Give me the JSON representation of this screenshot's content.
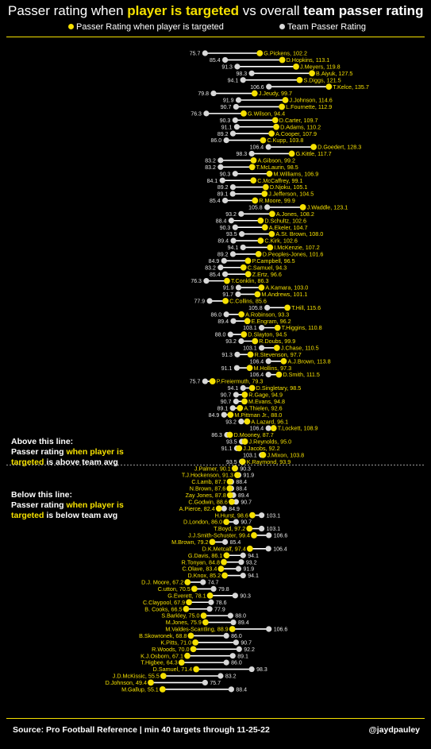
{
  "title": {
    "part1": "Passer rating when ",
    "part2": "player is targeted",
    "part3": " vs overall ",
    "part4": "team passer rating"
  },
  "legend": {
    "player": "Passer Rating when player is targeted",
    "team": "Team Passer Rating"
  },
  "colors": {
    "player": "#f5e000",
    "team": "#d8d8d8",
    "line": "#ffffff",
    "accent": "#f5e000"
  },
  "notes": {
    "above": {
      "l1": "Above this line:",
      "l2a": "Passer rating ",
      "l2b": "when player is",
      "l3a": "targeted",
      "l3b": " is above team avg"
    },
    "below": {
      "l1": "Below this line:",
      "l2a": "Passer rating ",
      "l2b": "when player is",
      "l3a": "targeted",
      "l3b": " is below team avg"
    }
  },
  "footer": {
    "source": "Source: Pro Football Reference | min 40 targets through 11-25-22",
    "handle": "@jaydpauley"
  },
  "chart_data": {
    "type": "dumbbell",
    "series": [
      {
        "name": "Passer Rating when player is targeted"
      },
      {
        "name": "Team Passer Rating"
      }
    ],
    "rows": [
      {
        "name": "G.Pickens",
        "player": 102.2,
        "team": 75.7,
        "team_label": "75.7",
        "label": "G.Pickens, 102.2"
      },
      {
        "name": "D.Hopkins",
        "player": 113.1,
        "team": 85.4,
        "team_label": "85.4",
        "label": "D.Hopkins, 113.1"
      },
      {
        "name": "J.Meyers",
        "player": 119.8,
        "team": 91.3,
        "team_label": "91.3",
        "label": "J.Meyers, 119.8"
      },
      {
        "name": "B.Aiyuk",
        "player": 127.5,
        "team": 98.3,
        "team_label": "98.3",
        "label": "B.Aiyuk, 127.5"
      },
      {
        "name": "S.Diggs",
        "player": 121.5,
        "team": 94.1,
        "team_label": "94.1",
        "label": "S.Diggs, 121.5"
      },
      {
        "name": "T.Kelce",
        "player": 135.7,
        "team": 106.6,
        "team_label": "106.6",
        "label": "T.Kelce, 135.7"
      },
      {
        "name": "J.Jeudy",
        "player": 99.7,
        "team": 79.8,
        "team_label": "79.8",
        "label": "J.Jeudy, 99.7"
      },
      {
        "name": "J.Johnson",
        "player": 114.6,
        "team": 91.9,
        "team_label": "91.9",
        "label": "J.Johnson, 114.6"
      },
      {
        "name": "L.Fournette",
        "player": 112.9,
        "team": 90.7,
        "team_label": "90.7",
        "label": "L.Fournette, 112.9"
      },
      {
        "name": "G.Wilson",
        "player": 94.4,
        "team": 76.3,
        "team_label": "76.3",
        "label": "G.Wilson, 94.4"
      },
      {
        "name": "D.Carter",
        "player": 109.7,
        "team": 90.3,
        "team_label": "90.3",
        "label": "D.Carter, 109.7"
      },
      {
        "name": "D.Adams",
        "player": 110.2,
        "team": 91.1,
        "team_label": "91.1",
        "label": "D.Adams, 110.2"
      },
      {
        "name": "A.Cooper",
        "player": 107.9,
        "team": 89.2,
        "team_label": "89.2",
        "label": "A.Cooper, 107.9"
      },
      {
        "name": "C.Kupp",
        "player": 103.8,
        "team": 86.0,
        "team_label": "86.0",
        "label": "C.Kupp, 103.8"
      },
      {
        "name": "D.Goedert",
        "player": 128.3,
        "team": 106.4,
        "team_label": "106.4",
        "label": "D.Goedert, 128.3"
      },
      {
        "name": "G.Kittle",
        "player": 117.7,
        "team": 98.3,
        "team_label": "98.3",
        "label": "G.Kittle, 117.7"
      },
      {
        "name": "A.Gibson",
        "player": 99.2,
        "team": 83.2,
        "team_label": "83.2",
        "label": "A.Gibson, 99.2"
      },
      {
        "name": "T.McLaurin",
        "player": 98.5,
        "team": 83.2,
        "team_label": "83.2",
        "label": "T.McLaurin, 98.5"
      },
      {
        "name": "M.Williams",
        "player": 106.9,
        "team": 90.3,
        "team_label": "90.3",
        "label": "M.Williams, 106.9"
      },
      {
        "name": "C.McCaffrey",
        "player": 99.1,
        "team": 84.1,
        "team_label": "84.1",
        "label": "C.McCaffrey, 99.1"
      },
      {
        "name": "D.Njoku",
        "player": 105.1,
        "team": 89.2,
        "team_label": "89.2",
        "label": "D.Njoku, 105.1"
      },
      {
        "name": "J.Jefferson",
        "player": 104.5,
        "team": 89.1,
        "team_label": "89.1",
        "label": "J.Jefferson, 104.5"
      },
      {
        "name": "R.Moore",
        "player": 99.9,
        "team": 85.4,
        "team_label": "85.4",
        "label": "R.Moore, 99.9"
      },
      {
        "name": "J.Waddle",
        "player": 123.1,
        "team": 105.8,
        "team_label": "105.8",
        "label": "J.Waddle, 123.1"
      },
      {
        "name": "A.Jones",
        "player": 108.2,
        "team": 93.2,
        "team_label": "93.2",
        "label": "A.Jones, 108.2"
      },
      {
        "name": "D.Schultz",
        "player": 102.6,
        "team": 88.4,
        "team_label": "88.4",
        "label": "D.Schultz, 102.6"
      },
      {
        "name": "A.Ekeler",
        "player": 104.7,
        "team": 90.3,
        "team_label": "90.3",
        "label": "A.Ekeler, 104.7"
      },
      {
        "name": "A.St. Brown",
        "player": 108.0,
        "team": 93.5,
        "team_label": "93.5",
        "label": "A.St. Brown, 108.0"
      },
      {
        "name": "C.Kirk",
        "player": 102.6,
        "team": 89.4,
        "team_label": "89.4",
        "label": "C.Kirk, 102.6"
      },
      {
        "name": "I.McKenzie",
        "player": 107.2,
        "team": 94.1,
        "team_label": "94.1",
        "label": "I.McKenzie, 107.2"
      },
      {
        "name": "D.Peoples-Jones",
        "player": 101.6,
        "team": 89.2,
        "team_label": "89.2",
        "label": "D.Peoples-Jones, 101.6"
      },
      {
        "name": "P.Campbell",
        "player": 96.5,
        "team": 84.9,
        "team_label": "84.9",
        "label": "P.Campbell, 96.5"
      },
      {
        "name": "C.Samuel",
        "player": 94.3,
        "team": 83.2,
        "team_label": "83.2",
        "label": "C.Samuel, 94.3"
      },
      {
        "name": "Z.Ertz",
        "player": 96.6,
        "team": 85.4,
        "team_label": "85.4",
        "label": "Z.Ertz, 96.6"
      },
      {
        "name": "T.Conklin",
        "player": 86.3,
        "team": 76.3,
        "team_label": "76.3",
        "label": "T.Conklin, 86.3"
      },
      {
        "name": "A.Kamara",
        "player": 103.0,
        "team": 91.9,
        "team_label": "91.9",
        "label": "A.Kamara, 103.0"
      },
      {
        "name": "M.Andrews",
        "player": 101.1,
        "team": 91.7,
        "team_label": "91.7",
        "label": "M.Andrews, 101.1"
      },
      {
        "name": "C.Collins",
        "player": 85.6,
        "team": 77.9,
        "team_label": "77.9",
        "label": "C.Collins, 85.6"
      },
      {
        "name": "T.Hill",
        "player": 115.6,
        "team": 105.8,
        "team_label": "105.8",
        "label": "T.Hill, 115.6"
      },
      {
        "name": "A.Robinson",
        "player": 93.3,
        "team": 86.0,
        "team_label": "86.0",
        "label": "A.Robinson, 93.3"
      },
      {
        "name": "E.Engram",
        "player": 96.2,
        "team": 89.4,
        "team_label": "89.4",
        "label": "E.Engram, 96.2"
      },
      {
        "name": "T.Higgins",
        "player": 110.8,
        "team": 103.1,
        "team_label": "103.1",
        "label": "T.Higgins, 110.8"
      },
      {
        "name": "D.Slayton",
        "player": 94.5,
        "team": 88.0,
        "team_label": "88.0",
        "label": "D.Slayton, 94.5"
      },
      {
        "name": "R.Doubs",
        "player": 99.9,
        "team": 93.2,
        "team_label": "93.2",
        "label": "R.Doubs, 99.9"
      },
      {
        "name": "J.Chase",
        "player": 110.5,
        "team": 103.1,
        "team_label": "103.1",
        "label": "J.Chase, 110.5"
      },
      {
        "name": "R.Stevenson",
        "player": 97.7,
        "team": 91.3,
        "team_label": "91.3",
        "label": "R.Stevenson, 97.7"
      },
      {
        "name": "A.J.Brown",
        "player": 113.8,
        "team": 106.4,
        "team_label": "106.4",
        "label": "A.J.Brown, 113.8"
      },
      {
        "name": "M.Hollins",
        "player": 97.3,
        "team": 91.1,
        "team_label": "91.1",
        "label": "M.Hollins, 97.3"
      },
      {
        "name": "D.Smith",
        "player": 111.5,
        "team": 106.4,
        "team_label": "106.4",
        "label": "D.Smith, 111.5"
      },
      {
        "name": "P.Freiermuth",
        "player": 79.3,
        "team": 75.7,
        "team_label": "75.7",
        "label": "P.Freiermuth, 79.3"
      },
      {
        "name": "D.Singletary",
        "player": 98.5,
        "team": 94.1,
        "team_label": "94.1",
        "label": "D.Singletary, 98.5"
      },
      {
        "name": "R.Gage",
        "player": 94.9,
        "team": 90.7,
        "team_label": "90.7",
        "label": "R.Gage, 94.9"
      },
      {
        "name": "M.Evans",
        "player": 94.8,
        "team": 90.7,
        "team_label": "90.7",
        "label": "M.Evans, 94.8"
      },
      {
        "name": "A.Thielen",
        "player": 92.6,
        "team": 89.1,
        "team_label": "89.1",
        "label": "A.Thielen, 92.6"
      },
      {
        "name": "M.Pittman Jr.",
        "player": 88.0,
        "team": 84.9,
        "team_label": "84.9",
        "label": "M.Pittman Jr., 88.0"
      },
      {
        "name": "A.Lazard",
        "player": 96.1,
        "team": 93.2,
        "team_label": "93.2",
        "label": "A.Lazard, 96.1"
      },
      {
        "name": "T.Lockett",
        "player": 108.9,
        "team": 106.4,
        "team_label": "106.4",
        "label": "T.Lockett, 108.9"
      },
      {
        "name": "D.Mooney",
        "player": 87.7,
        "team": 86.3,
        "team_label": "86.3",
        "label": "D.Mooney, 87.7"
      },
      {
        "name": "J.Reynolds",
        "player": 95.0,
        "team": 93.5,
        "team_label": "93.5",
        "label": "J.Reynolds, 95.0"
      },
      {
        "name": "J.Jacobs",
        "player": 92.2,
        "team": 91.1,
        "team_label": "91.1",
        "label": "J.Jacobs, 92.2"
      },
      {
        "name": "J.Mixon",
        "player": 103.8,
        "team": 103.1,
        "team_label": "103.1",
        "label": "J.Mixon, 103.8"
      },
      {
        "name": "K.Raymond",
        "player": 93.9,
        "team": 93.5,
        "team_label": "93.5",
        "label": "K.Raymond, 93.9"
      },
      {
        "name": "J.Palmer",
        "player": 90.1,
        "team": 90.3,
        "team_label": "90.3",
        "label": "J.Palmer, 90.1"
      },
      {
        "name": "T.J.Hockenson",
        "player": 91.3,
        "team": 91.9,
        "team_label": "91.9",
        "label": "T.J.Hockenson, 91.3"
      },
      {
        "name": "C.Lamb",
        "player": 87.7,
        "team": 88.4,
        "team_label": "88.4",
        "label": "C.Lamb, 87.7"
      },
      {
        "name": "N.Brown",
        "player": 87.6,
        "team": 88.4,
        "team_label": "88.4",
        "label": "N.Brown, 87.6"
      },
      {
        "name": "Zay Jones",
        "player": 87.8,
        "team": 89.4,
        "team_label": "89.4",
        "label": "Zay Jones, 87.8"
      },
      {
        "name": "C.Godwin",
        "player": 88.6,
        "team": 90.7,
        "team_label": "90.7",
        "label": "C.Godwin, 88.6"
      },
      {
        "name": "A.Pierce",
        "player": 82.4,
        "team": 84.9,
        "team_label": "84.9",
        "label": "A.Pierce, 82.4"
      },
      {
        "name": "H.Hurst",
        "player": 98.6,
        "team": 103.1,
        "team_label": "103.1",
        "label": "H.Hurst, 98.6"
      },
      {
        "name": "D.London",
        "player": 86.0,
        "team": 90.7,
        "team_label": "90.7",
        "label": "D.London, 86.0"
      },
      {
        "name": "T.Boyd",
        "player": 97.2,
        "team": 103.1,
        "team_label": "103.1",
        "label": "T.Boyd, 97.2"
      },
      {
        "name": "J.J.Smith-Schuster",
        "player": 99.4,
        "team": 106.6,
        "team_label": "106.6",
        "label": "J.J.Smith-Schuster, 99.4"
      },
      {
        "name": "M.Brown",
        "player": 79.2,
        "team": 85.4,
        "team_label": "85.4",
        "label": "M.Brown, 79.2"
      },
      {
        "name": "D.K.Metcalf",
        "player": 97.4,
        "team": 106.4,
        "team_label": "106.4",
        "label": "D.K.Metcalf, 97.4"
      },
      {
        "name": "G.Davis",
        "player": 86.1,
        "team": 94.1,
        "team_label": "94.1",
        "label": "G.Davis, 86.1"
      },
      {
        "name": "R.Tonyan",
        "player": 84.8,
        "team": 93.2,
        "team_label": "93.2",
        "label": "R.Tonyan, 84.8"
      },
      {
        "name": "C.Olave",
        "player": 83.4,
        "team": 91.9,
        "team_label": "91.9",
        "label": "C.Olave, 83.4"
      },
      {
        "name": "D.Knox",
        "player": 85.2,
        "team": 94.1,
        "team_label": "94.1",
        "label": "D.Knox, 85.2"
      },
      {
        "name": "D.J. Moore",
        "player": 67.2,
        "team": 74.7,
        "team_label": "74.7",
        "label": "D.J. Moore, 67.2"
      },
      {
        "name": "C.utton",
        "player": 70.5,
        "team": 79.8,
        "team_label": "79.8",
        "label": "C.utton, 70.5"
      },
      {
        "name": "G.Everett",
        "player": 78.1,
        "team": 90.3,
        "team_label": "90.3",
        "label": "G.Everett, 78.1"
      },
      {
        "name": "C.Claypool",
        "player": 67.9,
        "team": 78.6,
        "team_label": "78.6",
        "label": "C.Claypool, 67.9"
      },
      {
        "name": "B. Cooks",
        "player": 66.5,
        "team": 77.9,
        "team_label": "77.9",
        "label": "B. Cooks, 66.5"
      },
      {
        "name": "S.Barkley",
        "player": 75.0,
        "team": 88.0,
        "team_label": "88.0",
        "label": "S.Barkley, 75.0"
      },
      {
        "name": "M.Jones",
        "player": 75.9,
        "team": 89.4,
        "team_label": "89.4",
        "label": "M.Jones, 75.9"
      },
      {
        "name": "M.Valdes-Scantling",
        "player": 88.9,
        "team": 106.6,
        "team_label": "106.6",
        "label": "M.Valdes-Scantling, 88.9"
      },
      {
        "name": "B.Skowronek",
        "player": 68.8,
        "team": 86.0,
        "team_label": "86.0",
        "label": "B.Skowronek, 68.8"
      },
      {
        "name": "K.Pitts",
        "player": 71.0,
        "team": 90.7,
        "team_label": "90.7",
        "label": "K.Pitts, 71.0"
      },
      {
        "name": "R.Woods",
        "player": 70.0,
        "team": 92.2,
        "team_label": "92.2",
        "label": "R.Woods, 70.0"
      },
      {
        "name": "K.J.Osborn",
        "player": 67.1,
        "team": 89.1,
        "team_label": "89.1",
        "label": "K.J.Osborn, 67.1"
      },
      {
        "name": "T.Higbee",
        "player": 64.3,
        "team": 86.0,
        "team_label": "86.0",
        "label": "T.Higbee, 64.3"
      },
      {
        "name": "D.Samuel",
        "player": 71.4,
        "team": 98.3,
        "team_label": "98.3",
        "label": "D.Samuel, 71.4"
      },
      {
        "name": "J.D.McKissic",
        "player": 55.5,
        "team": 83.2,
        "team_label": "83.2",
        "label": "J.D.McKissic, 55.5"
      },
      {
        "name": "D.Johnson",
        "player": 49.4,
        "team": 75.7,
        "team_label": "75.7",
        "label": "D.Johnson, 49.4"
      },
      {
        "name": "M.Gallup",
        "player": 55.1,
        "team": 88.4,
        "team_label": "88.4",
        "label": "M.Gallup, 55.1"
      }
    ],
    "annotations": [
      "Above this line",
      "Below this line"
    ]
  }
}
